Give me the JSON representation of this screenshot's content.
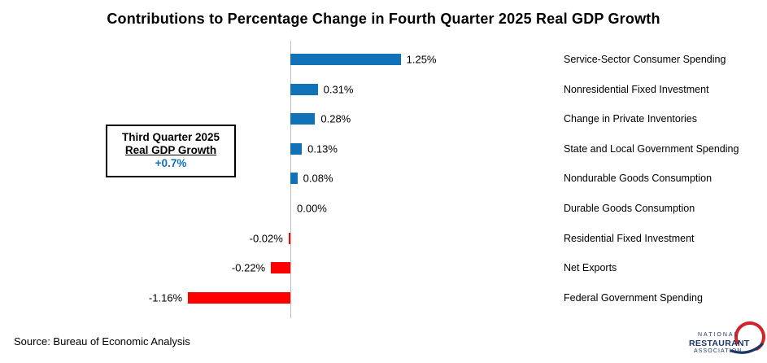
{
  "title": "Contributions to Percentage Change in Fourth Quarter 2025 Real GDP Growth",
  "annotation": {
    "line1": "Third Quarter 2025",
    "line2": "Real GDP Growth",
    "value": "+0.7%"
  },
  "source": "Source: Bureau of Economic Analysis",
  "logo": {
    "line1": "NATIONAL",
    "line2": "RESTAURANT",
    "line3": "ASSOCIATION"
  },
  "colors": {
    "positive_bar": "#1172ba",
    "negative_bar": "#fe0000",
    "annotation_value": "#0e70c0",
    "axis_line": "#bfbfbf",
    "logo_navy": "#1c3664",
    "logo_red": "#d2232a"
  },
  "chart_data": {
    "type": "bar",
    "orientation": "horizontal",
    "title": "Contributions to Percentage Change in Fourth Quarter 2025 Real GDP Growth",
    "xlabel": "",
    "ylabel": "",
    "grid": false,
    "legend": "none",
    "unit": "percentage points",
    "categories": [
      "Service-Sector Consumer Spending",
      "Nonresidential Fixed Investment",
      "Change in Private Inventories",
      "State and Local Government Spending",
      "Nondurable Goods Consumption",
      "Durable Goods Consumption",
      "Residential Fixed Investment",
      "Net Exports",
      "Federal Government Spending"
    ],
    "values": [
      1.25,
      0.31,
      0.28,
      0.13,
      0.08,
      0.0,
      -0.02,
      -0.22,
      -1.16
    ],
    "value_labels": [
      "1.25%",
      "0.31%",
      "0.28%",
      "0.13%",
      "0.08%",
      "0.00%",
      "-0.02%",
      "-0.22%",
      "-1.16%"
    ]
  }
}
